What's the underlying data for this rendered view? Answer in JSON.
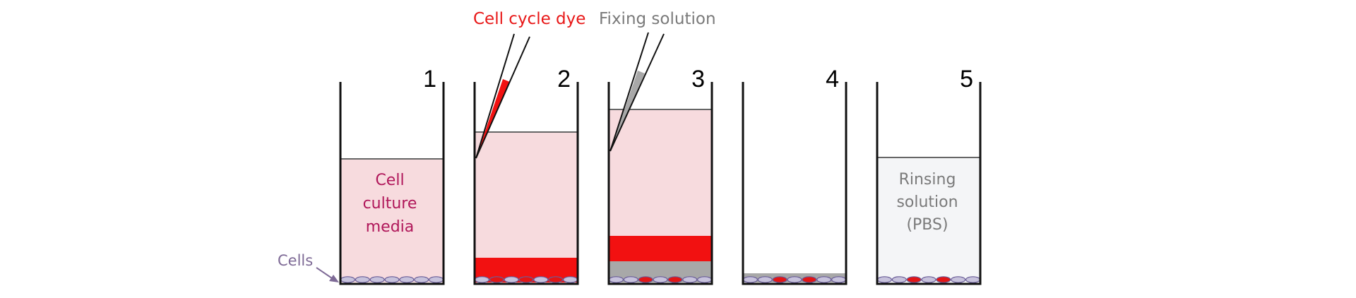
{
  "colors": {
    "background": "#ffffff",
    "media": "#f7dbde",
    "rinse": "#f4f5f7",
    "dye": "#f21111",
    "fixer": "#a8a8a8",
    "cell_fill": "#c7c2dc",
    "cell_stroke": "#6a5e98",
    "cell_stained": "#e21616",
    "wall": "#111111",
    "surface_line": "#666666",
    "media_text": "#b0175a",
    "rinse_text": "#7a7a7a",
    "cells_label": "#7e6a96",
    "dye_label": "#e81717",
    "fixer_label": "#7a7a7a"
  },
  "labels": {
    "cell_cycle_dye": "Cell cycle dye",
    "fixing_solution": "Fixing solution",
    "cells": "Cells",
    "media_line1": "Cell",
    "media_line2": "culture",
    "media_line3": "media",
    "rinse_line1": "Rinsing",
    "rinse_line2": "solution",
    "rinse_line3": "(PBS)"
  },
  "wells": [
    {
      "number": "1",
      "contents": "media",
      "stained_cells": 0
    },
    {
      "number": "2",
      "contents": "media+dye",
      "stained_cells": 3
    },
    {
      "number": "3",
      "contents": "media+dye+fixer",
      "stained_cells": 2
    },
    {
      "number": "4",
      "contents": "fixer-residue",
      "stained_cells": 2
    },
    {
      "number": "5",
      "contents": "rinse",
      "stained_cells": 2
    }
  ]
}
